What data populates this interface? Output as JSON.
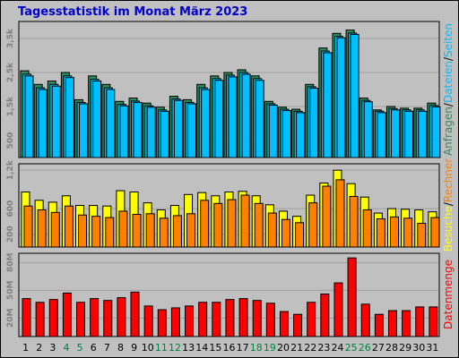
{
  "title": "Tagesstatistik im Monat März 2023",
  "colors": {
    "title": "#0000cc",
    "anfragen": "#2e8b57",
    "dateien": "#00bfff",
    "seiten": "#00bfff",
    "besuche": "#ffff00",
    "rechner": "#ff8000",
    "datenmenge": "#ff0000",
    "weekday_label": "#000000",
    "weekend_label": "#008040"
  },
  "chart_data": [
    {
      "type": "bar",
      "name": "requests-files-sites",
      "x": [
        1,
        2,
        3,
        4,
        5,
        6,
        7,
        8,
        9,
        10,
        11,
        12,
        13,
        14,
        15,
        16,
        17,
        18,
        19,
        20,
        21,
        22,
        23,
        24,
        25,
        26,
        27,
        28,
        29,
        30,
        31
      ],
      "ylim": [
        0,
        4000
      ],
      "ytick_labels": [
        "500",
        "1,5k",
        "2,5k",
        "3,5k"
      ],
      "ytick_values": [
        500,
        1500,
        2500,
        3500
      ],
      "legend": [
        "Anfragen",
        "/",
        "Dateien",
        "/",
        "Seiten"
      ],
      "series": [
        {
          "name": "Anfragen",
          "values": [
            2550,
            2150,
            2250,
            2500,
            1700,
            2400,
            2150,
            1650,
            1750,
            1600,
            1480,
            1800,
            1700,
            2150,
            2400,
            2500,
            2580,
            2400,
            1650,
            1480,
            1420,
            2150,
            3220,
            3650,
            3750,
            1750,
            1400,
            1500,
            1450,
            1450,
            1600
          ]
        },
        {
          "name": "Dateien",
          "values": [
            2450,
            2050,
            2150,
            2400,
            1620,
            2300,
            2050,
            1560,
            1660,
            1520,
            1400,
            1720,
            1620,
            2050,
            2320,
            2420,
            2500,
            2320,
            1580,
            1420,
            1360,
            2080,
            3130,
            3560,
            3660,
            1680,
            1360,
            1440,
            1400,
            1400,
            1530
          ]
        },
        {
          "name": "Seiten",
          "values": [
            2400,
            2000,
            2100,
            2350,
            1580,
            2250,
            2000,
            1520,
            1620,
            1480,
            1360,
            1680,
            1580,
            2000,
            2270,
            2370,
            2450,
            2270,
            1540,
            1380,
            1320,
            2040,
            3080,
            3520,
            3620,
            1640,
            1320,
            1400,
            1360,
            1360,
            1490
          ]
        }
      ]
    },
    {
      "type": "bar",
      "name": "visits-hosts",
      "x": [
        1,
        2,
        3,
        4,
        5,
        6,
        7,
        8,
        9,
        10,
        11,
        12,
        13,
        14,
        15,
        16,
        17,
        18,
        19,
        20,
        21,
        22,
        23,
        24,
        25,
        26,
        27,
        28,
        29,
        30,
        31
      ],
      "ylim": [
        0,
        1300
      ],
      "ytick_labels": [
        "200",
        "600",
        "1,2k"
      ],
      "ytick_values": [
        200,
        600,
        1200
      ],
      "legend": [
        "Besuche",
        "/",
        "Rechner"
      ],
      "series": [
        {
          "name": "Besuche",
          "values": [
            860,
            730,
            700,
            800,
            650,
            650,
            640,
            880,
            860,
            690,
            580,
            650,
            820,
            850,
            800,
            860,
            870,
            800,
            660,
            560,
            480,
            810,
            1000,
            1200,
            990,
            780,
            530,
            600,
            590,
            580,
            550
          ]
        },
        {
          "name": "Rechner",
          "values": [
            640,
            580,
            540,
            640,
            500,
            480,
            460,
            560,
            510,
            520,
            450,
            490,
            520,
            730,
            680,
            740,
            810,
            680,
            530,
            430,
            380,
            690,
            950,
            1050,
            790,
            580,
            440,
            470,
            450,
            370,
            460
          ]
        }
      ]
    },
    {
      "type": "bar",
      "name": "volume",
      "x": [
        1,
        2,
        3,
        4,
        5,
        6,
        7,
        8,
        9,
        10,
        11,
        12,
        13,
        14,
        15,
        16,
        17,
        18,
        19,
        20,
        21,
        22,
        23,
        24,
        25,
        26,
        27,
        28,
        29,
        30,
        31
      ],
      "ylim": [
        0,
        90
      ],
      "ytick_labels": [
        "20M",
        "50M",
        "80M"
      ],
      "ytick_values": [
        20,
        50,
        80
      ],
      "legend": [
        "Datenmenge"
      ],
      "series": [
        {
          "name": "Datenmenge",
          "values": [
            41,
            37,
            40,
            47,
            37,
            41,
            39,
            42,
            48,
            33,
            29,
            31,
            33,
            37,
            37,
            40,
            41,
            39,
            36,
            27,
            24,
            37,
            46,
            58,
            85,
            35,
            24,
            28,
            28,
            32,
            32
          ]
        }
      ]
    }
  ],
  "day_labels": [
    "1",
    "2",
    "3",
    "4",
    "5",
    "6",
    "7",
    "8",
    "9",
    "10",
    "11",
    "12",
    "13",
    "14",
    "15",
    "16",
    "17",
    "18",
    "19",
    "20",
    "21",
    "22",
    "23",
    "24",
    "25",
    "26",
    "27",
    "28",
    "29",
    "30",
    "31"
  ],
  "weekend_days": [
    4,
    5,
    11,
    12,
    18,
    19,
    25,
    26
  ]
}
